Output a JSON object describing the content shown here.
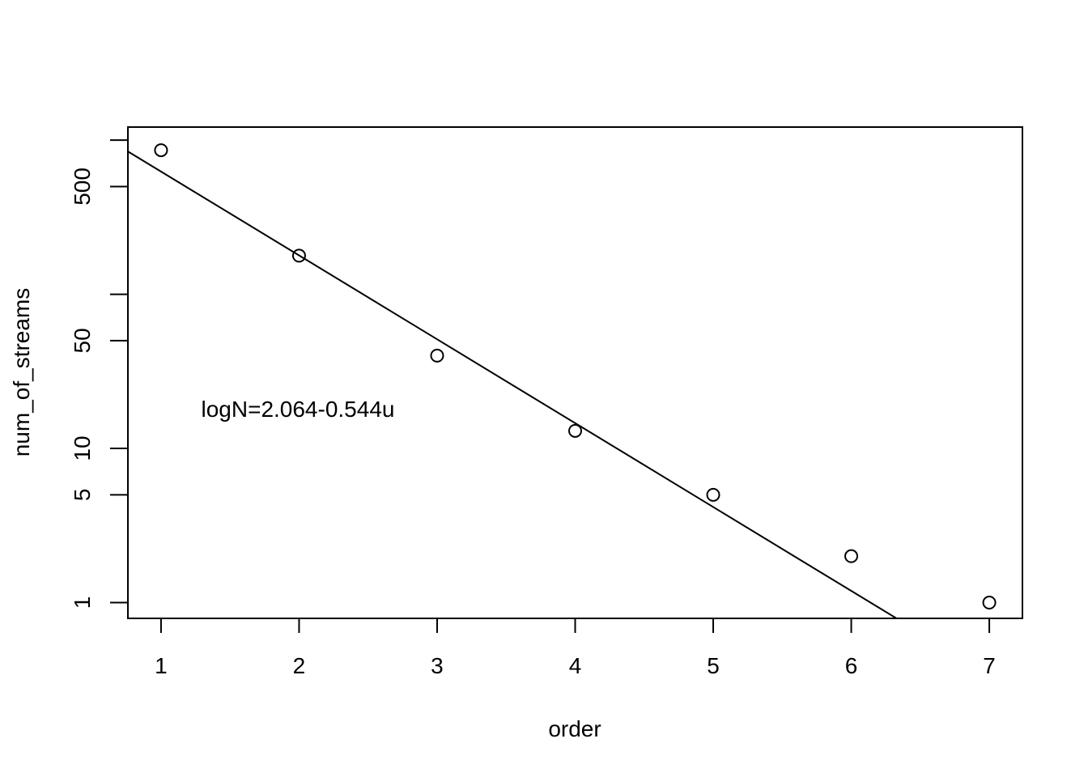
{
  "chart_data": {
    "type": "scatter",
    "title": "",
    "xlabel": "order",
    "ylabel": "num_of_streams",
    "ylog": true,
    "grid": false,
    "xlim": [
      0.76,
      7.24
    ],
    "ylim": [
      0.79,
      1215
    ],
    "x_ticks": [
      1,
      2,
      3,
      4,
      5,
      6,
      7
    ],
    "x_tick_labels": [
      "1",
      "2",
      "3",
      "4",
      "5",
      "6",
      "7"
    ],
    "y_ticks": [
      1,
      5,
      10,
      50,
      100,
      500,
      1000
    ],
    "y_tick_labels": [
      "1",
      "5",
      "10",
      "50",
      "",
      "500",
      ""
    ],
    "points": {
      "x": [
        1,
        2,
        3,
        4,
        5,
        6,
        7
      ],
      "y": [
        860,
        178,
        40,
        13,
        5,
        2,
        1
      ]
    },
    "fit_line": {
      "intercept": 3.34,
      "slope": -0.544
    },
    "annotation": "logN=2.064-0.544u"
  }
}
